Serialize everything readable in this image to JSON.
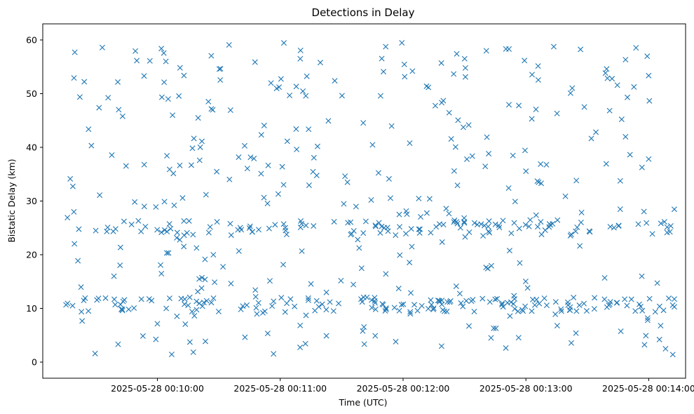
{
  "chart_data": {
    "type": "scatter",
    "title": "Detections in Delay",
    "xlabel": "Time (UTC)",
    "ylabel": "Bistatic Delay (km)",
    "xlim": [
      "2025-05-28 00:09:04",
      "2025-05-28 00:14:18"
    ],
    "ylim": [
      -3,
      63
    ],
    "xticks": [
      "2025-05-28 00:10:00",
      "2025-05-28 00:11:00",
      "2025-05-28 00:12:00",
      "2025-05-28 00:13:00",
      "2025-05-28 00:14:00"
    ],
    "yticks": [
      0,
      10,
      20,
      30,
      40,
      50,
      60
    ],
    "marker": "x",
    "color": "#1f77b4",
    "grid": false,
    "legend": "none",
    "t_start": "2025-05-28 00:09:15",
    "t_end": "2025-05-28 00:14:14",
    "n_points": 620
  }
}
